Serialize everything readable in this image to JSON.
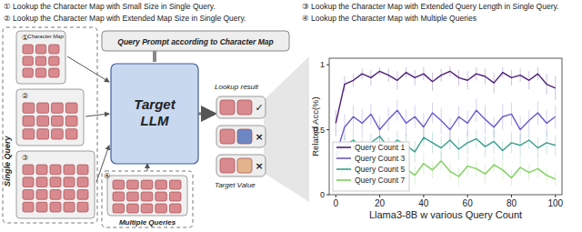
{
  "header": {
    "items": [
      "① Lookup the Character Map with Small Size in Single Query.",
      "② Lookup the Character Map with Extended Map Size in Single Query.",
      "③ Lookup the Character Map with Extended Query Length in Single Query.",
      "④ Lookup the Character Map with Multiple Queries"
    ]
  },
  "diagram": {
    "map_numbers": [
      "①",
      "②",
      "③",
      "④"
    ],
    "character_map": "Character Map",
    "single_query": "Single Query",
    "multiple_queries": "Multiple Queries",
    "prompt": "Query Prompt according to Character Map",
    "model": "Target LLM",
    "lookup_result": "Lookup result",
    "result_marks": [
      "✓",
      "×",
      "×"
    ],
    "target_value": "Target Value"
  },
  "chart_data": {
    "type": "line",
    "xlabel": "Llama3-8B w various Query Count",
    "ylabel": "Related Acc(%)",
    "x": [
      0,
      4,
      8,
      12,
      16,
      20,
      24,
      28,
      32,
      36,
      40,
      44,
      48,
      52,
      56,
      60,
      64,
      68,
      72,
      76,
      80,
      84,
      88,
      92,
      96,
      100
    ],
    "series": [
      {
        "name": "Query Count 1",
        "color": "#4b1d7a",
        "values": [
          0.55,
          0.85,
          0.88,
          0.93,
          0.9,
          0.95,
          0.92,
          0.88,
          0.94,
          0.9,
          0.93,
          0.87,
          0.92,
          0.95,
          0.9,
          0.88,
          0.93,
          0.91,
          0.86,
          0.94,
          0.9,
          0.92,
          0.88,
          0.93,
          0.85,
          0.82
        ],
        "errors": [
          0.1,
          0.06,
          0.05,
          0.04,
          0.06,
          0.03,
          0.05,
          0.07,
          0.04,
          0.06,
          0.05,
          0.07,
          0.05,
          0.04,
          0.06,
          0.07,
          0.05,
          0.06,
          0.08,
          0.04,
          0.06,
          0.05,
          0.07,
          0.05,
          0.08,
          0.09
        ]
      },
      {
        "name": "Query Count 3",
        "color": "#6a5acd",
        "values": [
          0.3,
          0.52,
          0.6,
          0.55,
          0.62,
          0.5,
          0.58,
          0.65,
          0.55,
          0.6,
          0.52,
          0.63,
          0.57,
          0.5,
          0.6,
          0.55,
          0.65,
          0.58,
          0.52,
          0.6,
          0.62,
          0.5,
          0.57,
          0.63,
          0.55,
          0.6
        ],
        "errors": [
          0.08,
          0.1,
          0.09,
          0.11,
          0.08,
          0.1,
          0.09,
          0.08,
          0.1,
          0.09,
          0.11,
          0.08,
          0.1,
          0.09,
          0.08,
          0.1,
          0.09,
          0.11,
          0.08,
          0.1,
          0.09,
          0.1,
          0.08,
          0.09,
          0.1,
          0.09
        ]
      },
      {
        "name": "Query Count 5",
        "color": "#3a9e8c",
        "values": [
          0.3,
          0.38,
          0.42,
          0.35,
          0.4,
          0.45,
          0.36,
          0.42,
          0.38,
          0.33,
          0.44,
          0.4,
          0.36,
          0.42,
          0.35,
          0.4,
          0.43,
          0.37,
          0.41,
          0.34,
          0.4,
          0.38,
          0.42,
          0.36,
          0.4,
          0.38
        ],
        "errors": [
          0.07,
          0.08,
          0.09,
          0.08,
          0.07,
          0.09,
          0.08,
          0.07,
          0.09,
          0.08,
          0.07,
          0.08,
          0.09,
          0.07,
          0.08,
          0.09,
          0.07,
          0.08,
          0.09,
          0.07,
          0.08,
          0.09,
          0.07,
          0.08,
          0.09,
          0.08
        ]
      },
      {
        "name": "Query Count 7",
        "color": "#7ccf5b",
        "values": [
          0.1,
          0.2,
          0.25,
          0.18,
          0.22,
          0.28,
          0.17,
          0.23,
          0.2,
          0.15,
          0.24,
          0.19,
          0.26,
          0.18,
          0.14,
          0.22,
          0.2,
          0.16,
          0.23,
          0.19,
          0.13,
          0.21,
          0.17,
          0.2,
          0.15,
          0.12
        ],
        "errors": [
          0.05,
          0.07,
          0.08,
          0.06,
          0.07,
          0.08,
          0.06,
          0.07,
          0.06,
          0.07,
          0.08,
          0.06,
          0.07,
          0.06,
          0.07,
          0.08,
          0.06,
          0.07,
          0.06,
          0.07,
          0.06,
          0.07,
          0.06,
          0.07,
          0.06,
          0.05
        ]
      }
    ],
    "xlim": [
      -3,
      103
    ],
    "xticks": [
      0,
      20,
      40,
      60,
      80,
      100
    ],
    "ylim": [
      0,
      1.05
    ],
    "yticks": [
      0,
      0.5,
      1
    ],
    "grid": false,
    "legend": "lower left"
  }
}
